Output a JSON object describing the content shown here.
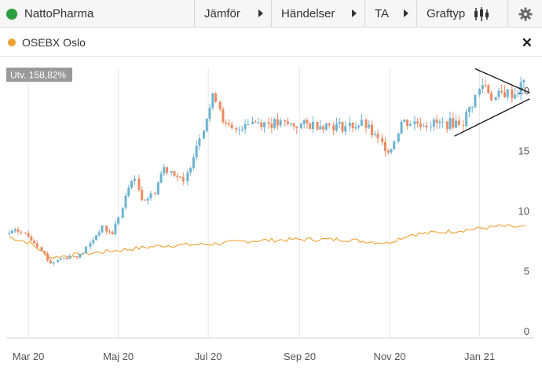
{
  "toolbar": {
    "ticker": "NattoPharma",
    "compare": "Jämför",
    "events": "Händelser",
    "ta": "TA",
    "charttype": "Graftyp"
  },
  "comparison": {
    "name": "OSEBX Oslo",
    "color": "#f0a030"
  },
  "colors": {
    "up": "#6db3d2",
    "down": "#ec8a62",
    "benchmark": "#f0a030",
    "status_green": "#2e9e3e"
  },
  "icons": [
    "gear-icon",
    "candlestick-icon",
    "close-icon"
  ],
  "chart_data": {
    "type": "candlestick",
    "badge": "Utv. 158,82%",
    "x_ticks": [
      "Mar 20",
      "Maj 20",
      "Jul 20",
      "Sep 20",
      "Nov 20",
      "Jan 21"
    ],
    "y_ticks": [
      "0",
      "5",
      "10",
      "15",
      "20"
    ],
    "ylim": [
      0,
      22.5
    ],
    "grid": "vertical",
    "price_path": [
      [
        "2020-02-17",
        8.7
      ],
      [
        "2020-02-24",
        8.9
      ],
      [
        "2020-03-02",
        8.4
      ],
      [
        "2020-03-09",
        7.6
      ],
      [
        "2020-03-16",
        6.2
      ],
      [
        "2020-03-23",
        6.6
      ],
      [
        "2020-03-30",
        6.8
      ],
      [
        "2020-04-06",
        6.9
      ],
      [
        "2020-04-13",
        8.0
      ],
      [
        "2020-04-20",
        9.2
      ],
      [
        "2020-04-27",
        8.6
      ],
      [
        "2020-05-04",
        10.8
      ],
      [
        "2020-05-11",
        13.5
      ],
      [
        "2020-05-18",
        11.5
      ],
      [
        "2020-05-25",
        11.9
      ],
      [
        "2020-06-01",
        14.2
      ],
      [
        "2020-06-08",
        13.8
      ],
      [
        "2020-06-15",
        12.8
      ],
      [
        "2020-06-22",
        15.6
      ],
      [
        "2020-06-29",
        18.0
      ],
      [
        "2020-07-06",
        20.4
      ],
      [
        "2020-07-13",
        17.6
      ],
      [
        "2020-07-20",
        17.1
      ],
      [
        "2020-07-27",
        18.1
      ],
      [
        "2020-08-03",
        18.0
      ],
      [
        "2020-08-17",
        17.8
      ],
      [
        "2020-09-01",
        17.7
      ],
      [
        "2020-09-15",
        17.8
      ],
      [
        "2020-10-01",
        17.6
      ],
      [
        "2020-10-15",
        17.8
      ],
      [
        "2020-10-26",
        16.2
      ],
      [
        "2020-11-02",
        15.6
      ],
      [
        "2020-11-09",
        18.0
      ],
      [
        "2020-11-23",
        17.9
      ],
      [
        "2020-12-07",
        17.8
      ],
      [
        "2020-12-21",
        18.0
      ],
      [
        "2021-01-04",
        21.3
      ],
      [
        "2021-01-11",
        19.9
      ],
      [
        "2021-01-18",
        20.4
      ],
      [
        "2021-01-25",
        20.3
      ],
      [
        "2021-02-01",
        21.3
      ]
    ],
    "benchmark_path": [
      [
        "2020-02-17",
        8.4
      ],
      [
        "2020-03-02",
        7.9
      ],
      [
        "2020-03-16",
        6.7
      ],
      [
        "2020-04-01",
        6.9
      ],
      [
        "2020-05-01",
        7.3
      ],
      [
        "2020-06-01",
        7.7
      ],
      [
        "2020-07-01",
        7.8
      ],
      [
        "2020-08-01",
        8.1
      ],
      [
        "2020-09-01",
        8.2
      ],
      [
        "2020-10-01",
        8.2
      ],
      [
        "2020-10-30",
        7.9
      ],
      [
        "2020-11-15",
        8.6
      ],
      [
        "2020-12-15",
        8.9
      ],
      [
        "2021-01-15",
        9.3
      ],
      [
        "2021-02-01",
        9.2
      ]
    ],
    "triangle": {
      "upper": [
        [
          "2020-12-29",
          22.4
        ],
        [
          "2021-02-04",
          20.4
        ]
      ],
      "lower": [
        [
          "2020-12-15",
          16.8
        ],
        [
          "2021-02-04",
          19.9
        ]
      ]
    }
  }
}
